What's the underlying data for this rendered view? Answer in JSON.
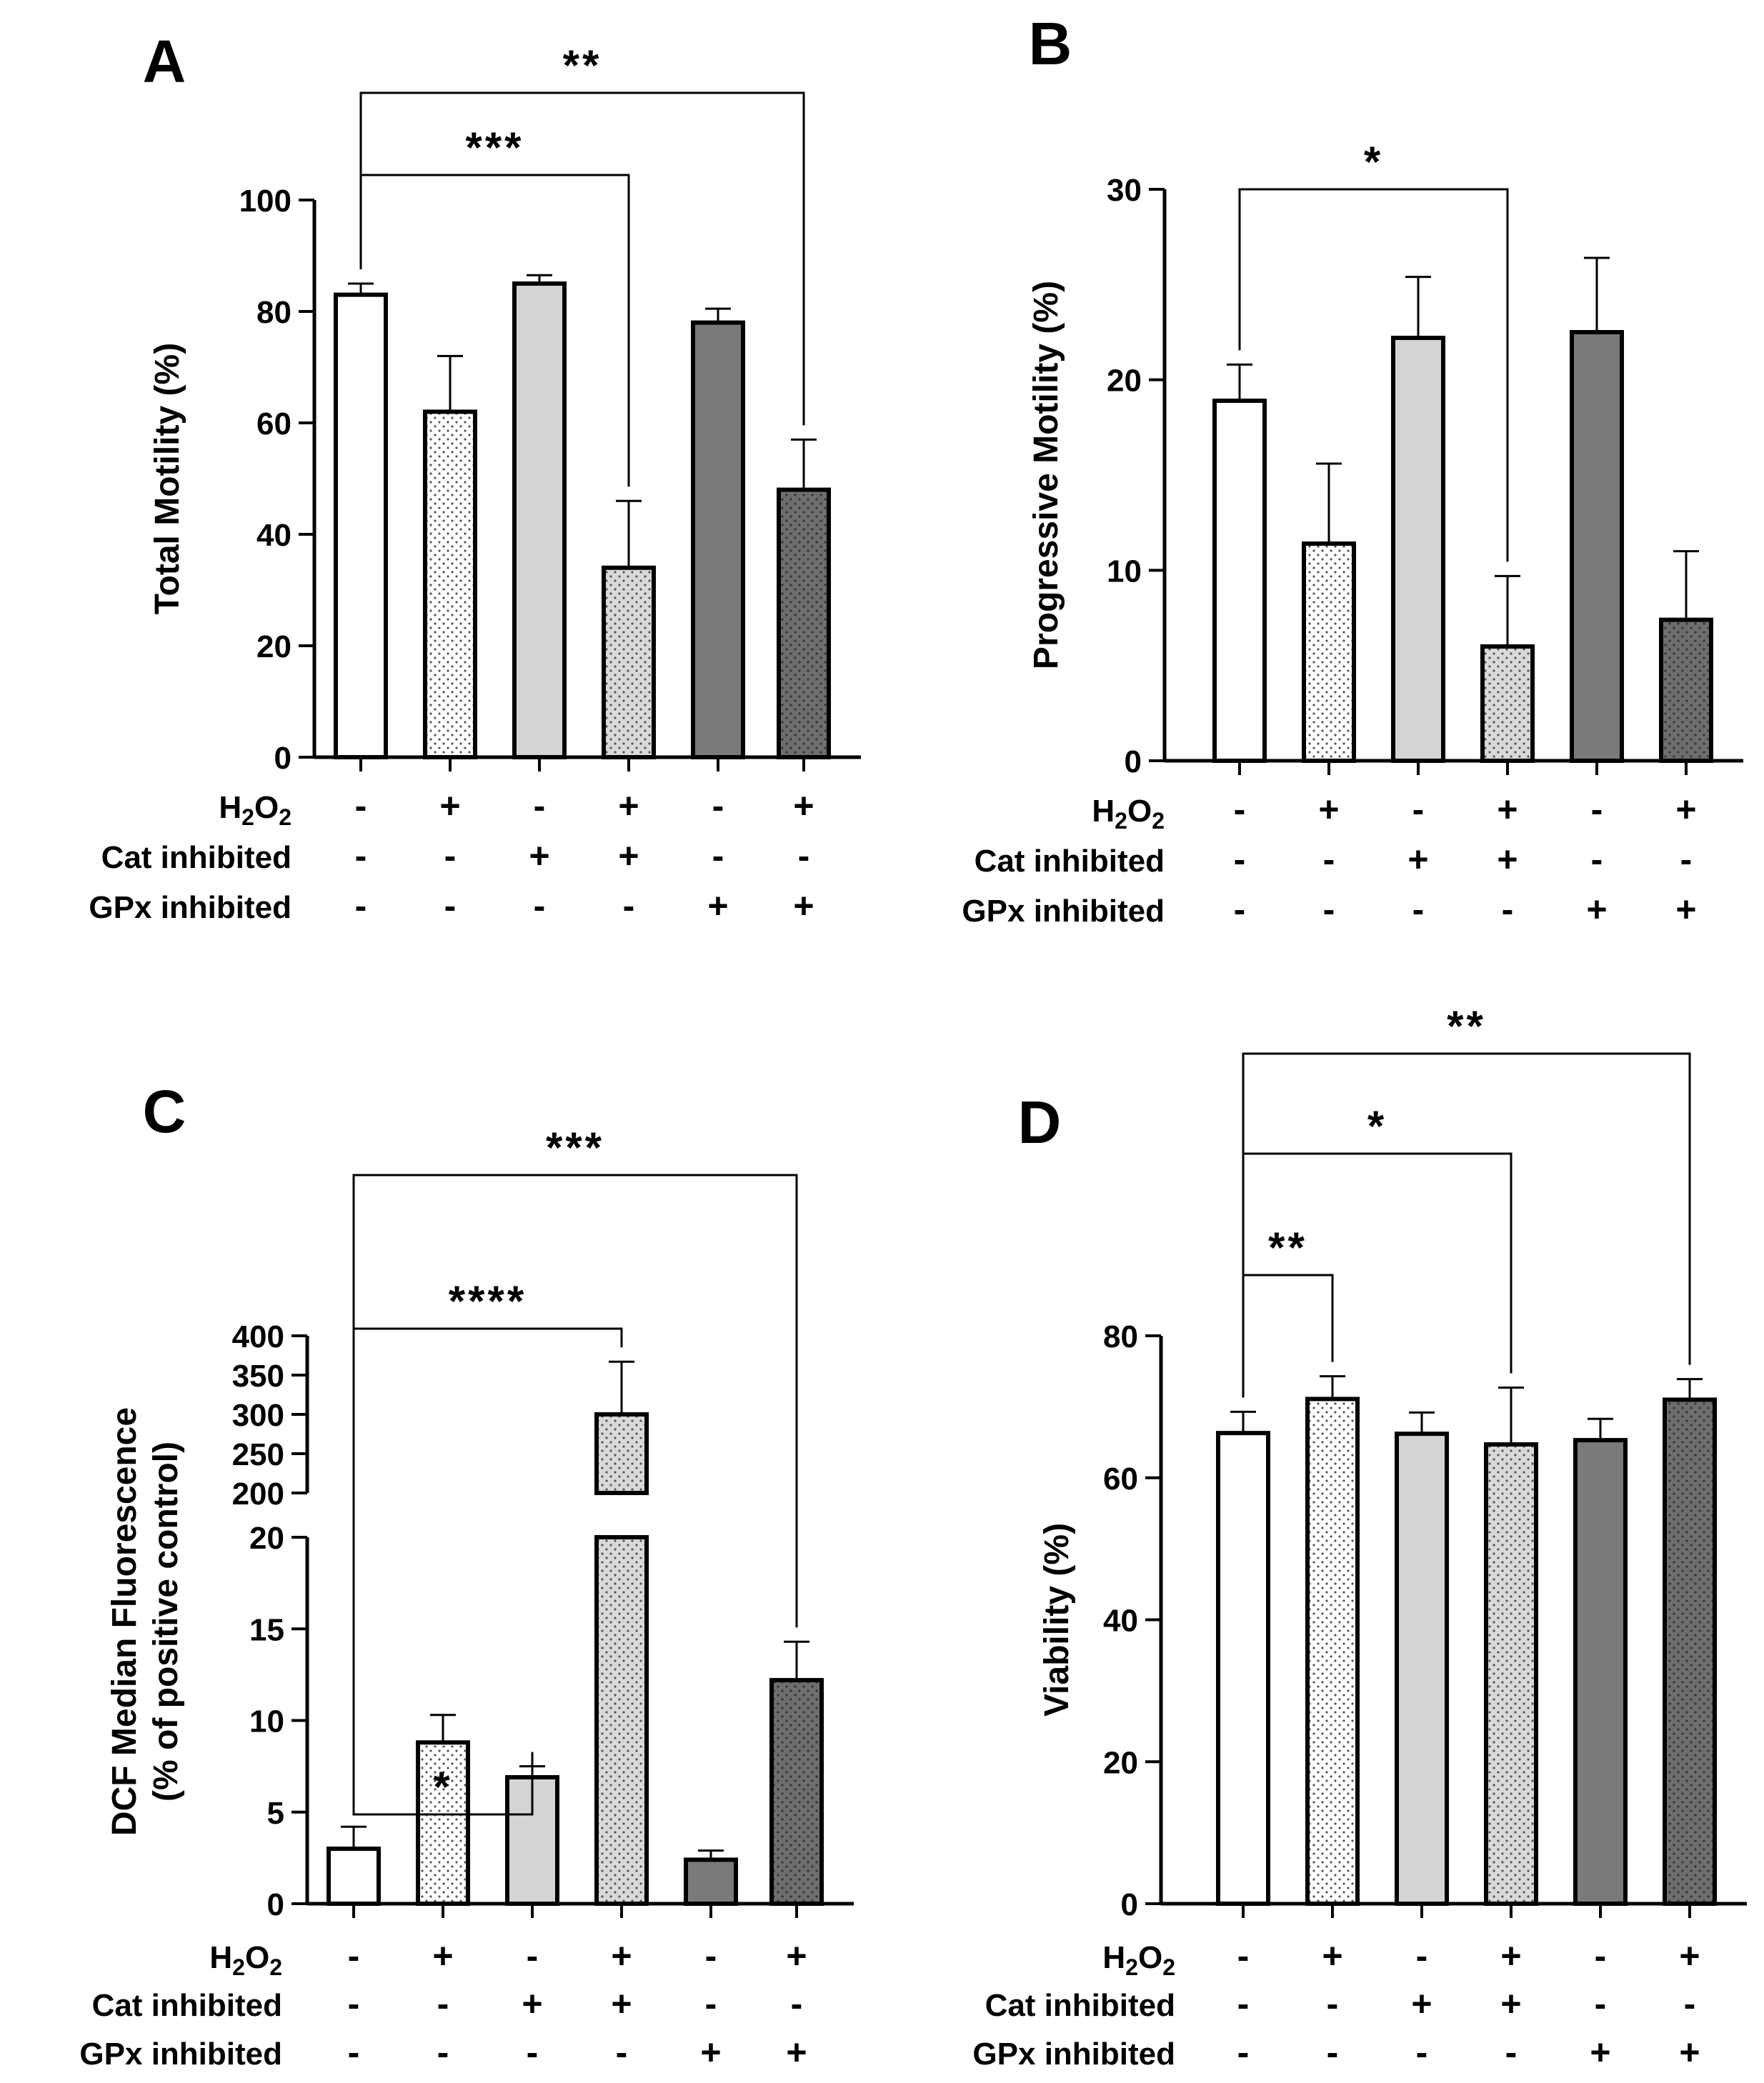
{
  "row_labels": [
    "H2O2",
    "Cat inhibited",
    "GPx inhibited"
  ],
  "conditions": {
    "h2o2": [
      "-",
      "+",
      "-",
      "+",
      "-",
      "+"
    ],
    "cat": [
      "-",
      "-",
      "+",
      "+",
      "-",
      "-"
    ],
    "gpx": [
      "-",
      "-",
      "-",
      "-",
      "+",
      "+"
    ]
  },
  "chart_data": [
    {
      "panel": "A",
      "type": "bar",
      "ylabel": "Total Motility (%)",
      "ylim": [
        0,
        100
      ],
      "yticks": [
        0,
        20,
        40,
        60,
        80,
        100
      ],
      "values": [
        83,
        62,
        85,
        34,
        78,
        48
      ],
      "errors": [
        2,
        10,
        1.5,
        12,
        2.5,
        9
      ],
      "significance": [
        {
          "from": 0,
          "to": 3,
          "label": "***"
        },
        {
          "from": 0,
          "to": 5,
          "label": "**"
        }
      ]
    },
    {
      "panel": "B",
      "type": "bar",
      "ylabel": "Progressive Motility (%)",
      "ylim": [
        0,
        30
      ],
      "yticks": [
        0,
        10,
        20,
        30
      ],
      "values": [
        18.9,
        11.4,
        22.2,
        6.0,
        22.5,
        7.4
      ],
      "errors": [
        1.9,
        4.2,
        3.2,
        3.7,
        3.9,
        3.6
      ],
      "significance": [
        {
          "from": 0,
          "to": 3,
          "label": "*"
        }
      ]
    },
    {
      "panel": "C",
      "type": "bar",
      "ylabel": "DCF Median Fluorescence",
      "ylabel2": "(% of positive control)",
      "axis_break": {
        "lower": [
          0,
          20
        ],
        "upper": [
          200,
          400
        ]
      },
      "yticks_lower": [
        0,
        5,
        10,
        15,
        20
      ],
      "yticks_upper": [
        200,
        250,
        300,
        350,
        400
      ],
      "values": [
        3.0,
        8.8,
        6.9,
        300,
        2.4,
        12.2
      ],
      "errors": [
        1.2,
        1.5,
        0.6,
        67,
        0.5,
        2.1
      ],
      "significance": [
        {
          "from": 0,
          "to": 2,
          "label": "*"
        },
        {
          "from": 0,
          "to": 3,
          "label": "****"
        },
        {
          "from": 0,
          "to": 5,
          "label": "***"
        }
      ]
    },
    {
      "panel": "D",
      "type": "bar",
      "ylabel": "Viability (%)",
      "ylim": [
        0,
        80
      ],
      "yticks": [
        0,
        20,
        40,
        60,
        80
      ],
      "values": [
        66.3,
        71.1,
        66.2,
        64.7,
        65.3,
        71.0
      ],
      "errors": [
        3.0,
        3.2,
        3.0,
        8.0,
        3.0,
        2.9
      ],
      "significance": [
        {
          "from": 0,
          "to": 1,
          "label": "**"
        },
        {
          "from": 0,
          "to": 3,
          "label": "*"
        },
        {
          "from": 0,
          "to": 5,
          "label": "**"
        }
      ]
    }
  ],
  "bar_colors": [
    "#ffffff",
    "#ffffff",
    "#d4d4d4",
    "#d4d4d4",
    "#7a7a7a",
    "#7a7a7a"
  ],
  "bar_dotted": [
    false,
    true,
    false,
    true,
    false,
    true
  ]
}
